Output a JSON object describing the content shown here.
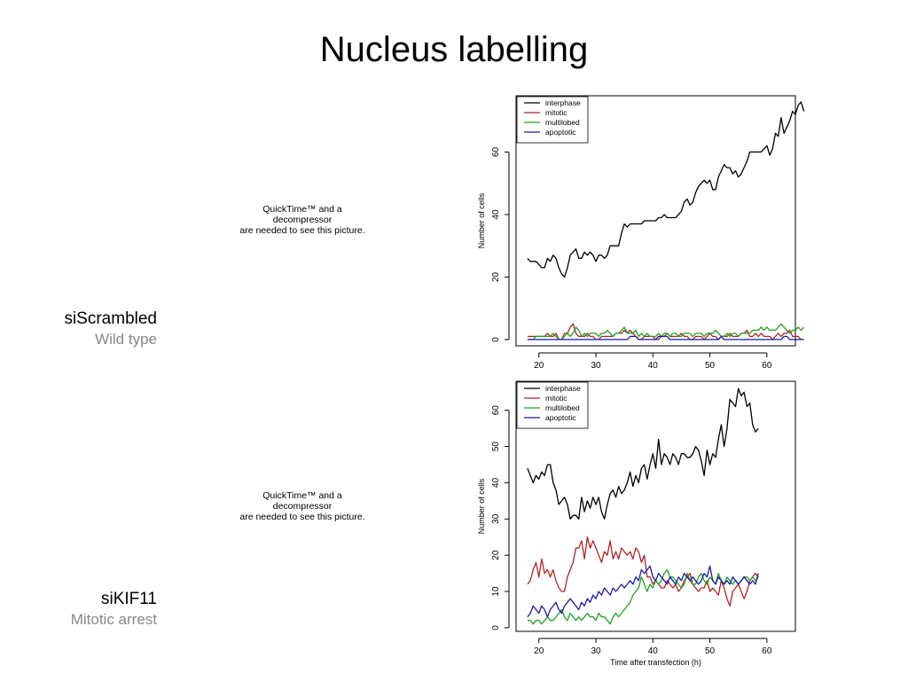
{
  "slide": {
    "title": "Nucleus labelling",
    "placeholders": [
      {
        "line1": "QuickTime™ and a",
        "line2": "decompressor",
        "line3": "are needed to see this picture."
      },
      {
        "line1": "QuickTime™ and a",
        "line2": "decompressor",
        "line3": "are needed to see this picture."
      }
    ],
    "rows": [
      {
        "name": "siScrambled",
        "subtitle": "Wild type"
      },
      {
        "name": "siKIF11",
        "subtitle": "Mitotic arrest"
      }
    ]
  },
  "colors": {
    "interphase": "#000000",
    "mitotic": "#b22222",
    "multilobed": "#22a022",
    "apoptotic": "#1a1aa8",
    "subtitle": "#888888"
  },
  "chart_data": [
    {
      "type": "line",
      "title": "",
      "xlabel": "",
      "ylabel": "Number of cells",
      "xlim": [
        16,
        65
      ],
      "ylim": [
        -2,
        78
      ],
      "xticks": [
        20,
        30,
        40,
        50,
        60
      ],
      "yticks": [
        0,
        20,
        40,
        60
      ],
      "legend": "top-left",
      "x_start": 18,
      "x_step": 0.5,
      "series": [
        {
          "name": "interphase",
          "values": [
            26,
            25,
            25,
            25,
            24,
            23,
            23,
            26,
            25,
            27,
            26,
            23,
            21,
            20,
            23,
            27,
            28,
            29,
            26,
            26,
            28,
            27,
            28,
            27,
            25,
            27,
            27,
            26,
            27,
            30,
            30,
            30,
            30,
            34,
            37,
            36,
            37,
            37,
            37,
            37,
            37,
            38,
            38,
            38,
            38,
            38,
            39,
            39,
            40,
            39,
            39,
            39,
            39,
            40,
            41,
            44,
            45,
            43,
            44,
            47,
            49,
            50,
            51,
            50,
            51,
            48,
            48,
            52,
            54,
            56,
            55,
            55,
            53,
            54,
            52,
            53,
            55,
            57,
            60,
            60,
            60,
            60,
            60,
            61,
            62,
            59,
            61,
            66,
            65,
            71,
            66,
            68,
            70,
            73,
            72,
            75,
            76,
            73
          ]
        },
        {
          "name": "mitotic",
          "values": [
            1,
            1,
            1,
            1,
            1,
            1,
            1,
            2,
            1,
            1,
            2,
            0,
            0,
            2,
            2,
            4,
            5,
            2,
            1,
            1,
            1,
            2,
            1,
            1,
            0,
            0,
            1,
            1,
            1,
            1,
            1,
            2,
            2,
            2,
            3,
            2,
            3,
            2,
            1,
            0,
            0,
            1,
            1,
            1,
            1,
            0,
            0,
            1,
            1,
            2,
            1,
            1,
            1,
            1,
            2,
            1,
            1,
            0,
            0,
            1,
            1,
            1,
            0,
            1,
            2,
            1,
            1,
            0,
            1,
            1,
            1,
            2,
            1,
            1,
            1,
            2,
            2,
            3,
            1,
            1,
            2,
            1,
            2,
            1,
            1,
            1,
            0,
            1,
            2,
            1,
            2,
            2,
            3,
            1,
            1,
            1,
            0,
            0
          ]
        },
        {
          "name": "multilobed",
          "values": [
            0,
            0,
            0,
            1,
            1,
            1,
            1,
            1,
            1,
            2,
            1,
            0,
            0,
            1,
            2,
            1,
            2,
            4,
            3,
            1,
            2,
            1,
            2,
            2,
            2,
            1,
            2,
            2,
            3,
            2,
            1,
            2,
            2,
            3,
            4,
            2,
            2,
            2,
            3,
            1,
            2,
            1,
            2,
            1,
            1,
            1,
            2,
            1,
            2,
            2,
            1,
            2,
            2,
            1,
            1,
            2,
            2,
            2,
            1,
            2,
            2,
            2,
            1,
            2,
            2,
            2,
            3,
            2,
            1,
            1,
            2,
            1,
            2,
            2,
            1,
            2,
            2,
            2,
            2,
            3,
            3,
            3,
            4,
            3,
            4,
            3,
            3,
            3,
            4,
            5,
            4,
            3,
            2,
            3,
            3,
            4,
            3,
            4
          ]
        },
        {
          "name": "apoptotic",
          "values": [
            0,
            0,
            0,
            0,
            0,
            0,
            0,
            0,
            0,
            0,
            0,
            0,
            0,
            0,
            0,
            0,
            0,
            0,
            0,
            0,
            0,
            0,
            0,
            0,
            0,
            0,
            0,
            0,
            0,
            0,
            0,
            0,
            0,
            0,
            0,
            0,
            1,
            1,
            1,
            0,
            0,
            0,
            0,
            0,
            0,
            0,
            1,
            1,
            1,
            1,
            0,
            0,
            0,
            0,
            0,
            0,
            0,
            0,
            0,
            0,
            0,
            0,
            0,
            0,
            0,
            0,
            0,
            0,
            1,
            0,
            0,
            0,
            0,
            0,
            0,
            0,
            0,
            0,
            0,
            0,
            0,
            0,
            0,
            0,
            0,
            0,
            0,
            0,
            0,
            0,
            1,
            1,
            0,
            0,
            0,
            0,
            0,
            0
          ]
        }
      ]
    },
    {
      "type": "line",
      "title": "",
      "xlabel": "Time after transfection (h)",
      "ylabel": "Number of cells",
      "xlim": [
        16,
        65
      ],
      "ylim": [
        -1,
        68
      ],
      "xticks": [
        20,
        30,
        40,
        50,
        60
      ],
      "yticks": [
        0,
        10,
        20,
        30,
        40,
        50,
        60
      ],
      "legend": "top-left",
      "x_start": 18,
      "x_step": 0.5,
      "series": [
        {
          "name": "interphase",
          "values": [
            44,
            42,
            40,
            42,
            41,
            43,
            42,
            45,
            45,
            40,
            38,
            34,
            35,
            36,
            34,
            30,
            31,
            31,
            30,
            36,
            32,
            35,
            33,
            36,
            34,
            36,
            32,
            30,
            34,
            37,
            38,
            36,
            39,
            37,
            38,
            40,
            43,
            39,
            42,
            40,
            44,
            45,
            41,
            45,
            48,
            44,
            52,
            45,
            48,
            47,
            45,
            48,
            47,
            45,
            48,
            48,
            47,
            47,
            48,
            50,
            49,
            46,
            42,
            49,
            45,
            48,
            47,
            52,
            56,
            50,
            55,
            63,
            62,
            61,
            66,
            64,
            65,
            61,
            62,
            56,
            54,
            55
          ]
        },
        {
          "name": "mitotic",
          "values": [
            12,
            13,
            16,
            18,
            14,
            19,
            15,
            16,
            14,
            16,
            13,
            11,
            10,
            10,
            14,
            16,
            18,
            22,
            22,
            24,
            19,
            25,
            22,
            24,
            22,
            20,
            18,
            21,
            20,
            24,
            19,
            21,
            19,
            22,
            21,
            20,
            21,
            19,
            22,
            21,
            18,
            20,
            14,
            14,
            12,
            13,
            12,
            11,
            11,
            13,
            12,
            11,
            12,
            10,
            11,
            13,
            14,
            15,
            12,
            11,
            10,
            11,
            11,
            13,
            10,
            11,
            10,
            9,
            13,
            11,
            8,
            6,
            10,
            11,
            12,
            10,
            8,
            10,
            13,
            14,
            15,
            14
          ]
        },
        {
          "name": "multilobed",
          "values": [
            2,
            2,
            1,
            2,
            2,
            1,
            2,
            3,
            2,
            2,
            3,
            4,
            5,
            3,
            2,
            4,
            3,
            2,
            3,
            2,
            3,
            4,
            3,
            3,
            2,
            4,
            3,
            3,
            2,
            1,
            3,
            4,
            3,
            4,
            5,
            6,
            7,
            9,
            10,
            11,
            14,
            12,
            10,
            12,
            11,
            13,
            12,
            13,
            15,
            16,
            14,
            14,
            13,
            12,
            11,
            12,
            15,
            13,
            12,
            12,
            14,
            15,
            13,
            12,
            14,
            13,
            12,
            15,
            13,
            12,
            14,
            13,
            12,
            13,
            12,
            13,
            14,
            14,
            13,
            14,
            13,
            14
          ]
        },
        {
          "name": "apoptotic",
          "values": [
            3,
            4,
            6,
            5,
            4,
            6,
            5,
            3,
            5,
            6,
            7,
            5,
            4,
            6,
            7,
            8,
            7,
            6,
            5,
            7,
            6,
            8,
            7,
            9,
            8,
            10,
            9,
            11,
            10,
            9,
            11,
            10,
            11,
            12,
            11,
            12,
            13,
            12,
            14,
            13,
            16,
            15,
            16,
            17,
            14,
            13,
            15,
            14,
            13,
            12,
            14,
            13,
            12,
            14,
            13,
            15,
            14,
            13,
            14,
            13,
            12,
            13,
            15,
            14,
            17,
            13,
            12,
            14,
            13,
            12,
            13,
            12,
            14,
            13,
            12,
            13,
            14,
            13,
            12,
            13,
            12,
            15
          ]
        }
      ]
    }
  ]
}
